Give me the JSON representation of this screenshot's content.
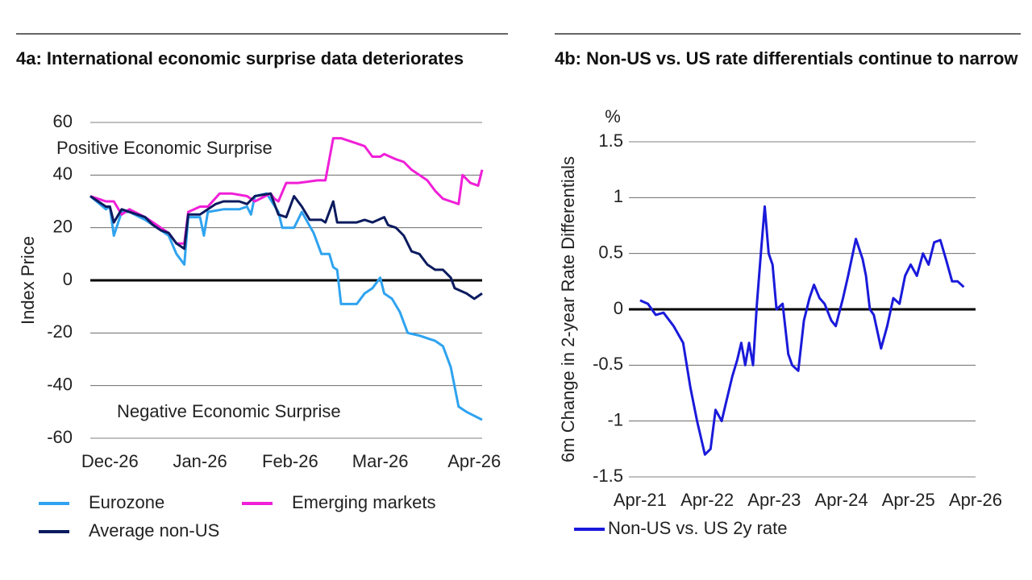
{
  "chart_data": [
    {
      "type": "line",
      "title": "4a: International economic surprise data deteriorates",
      "ylabel": "Index Price",
      "annotations": [
        "Positive Economic Surprise",
        "Negative Economic Surprise"
      ],
      "xlim": [
        0,
        100
      ],
      "ylim": [
        -60,
        60
      ],
      "grid": true,
      "legend": "bottom",
      "xticks": [
        {
          "value": 5,
          "label": "Dec-26"
        },
        {
          "value": 28,
          "label": "Jan-26"
        },
        {
          "value": 51,
          "label": "Feb-26"
        },
        {
          "value": 74,
          "label": "Mar-26"
        },
        {
          "value": 98,
          "label": "Apr-26"
        }
      ],
      "yticks": [
        60,
        40,
        20,
        0,
        -20,
        -40,
        -60
      ],
      "series": [
        {
          "name": "Eurozone",
          "color": "#2fa3f0",
          "x": [
            0,
            4,
            5,
            6,
            8,
            10,
            14,
            16,
            18,
            20,
            22,
            24,
            25,
            28,
            29,
            30,
            34,
            38,
            40,
            41,
            42,
            45,
            48,
            49,
            52,
            54,
            57,
            59,
            61,
            62,
            63,
            64,
            68,
            70,
            72,
            74,
            75,
            77,
            79,
            81,
            84,
            86,
            88,
            90,
            92,
            94,
            96,
            100
          ],
          "values": [
            32,
            27,
            28,
            17,
            26,
            26,
            23,
            21,
            19,
            17,
            10,
            6,
            24,
            24,
            17,
            26,
            27,
            27,
            28,
            25,
            32,
            33,
            26,
            20,
            20,
            26,
            18,
            10,
            10,
            5,
            4,
            -9,
            -9,
            -5,
            -3,
            1,
            -5,
            -7,
            -12,
            -20,
            -21,
            -22,
            -23,
            -25,
            -33,
            -48,
            -50,
            -53
          ]
        },
        {
          "name": "Emerging markets",
          "color": "#f01fd8",
          "x": [
            0,
            4,
            6,
            8,
            10,
            14,
            16,
            18,
            20,
            22,
            24,
            25,
            28,
            30,
            33,
            36,
            40,
            42,
            46,
            47,
            48,
            50,
            53,
            58,
            60,
            62,
            64,
            68,
            70,
            72,
            74,
            75,
            78,
            80,
            82,
            84,
            86,
            88,
            90,
            92,
            94,
            95,
            97,
            99,
            100
          ],
          "values": [
            32,
            30,
            30,
            25,
            27,
            24,
            22,
            20,
            18,
            14,
            14,
            26,
            28,
            28,
            33,
            33,
            32,
            30,
            33,
            31,
            30,
            37,
            37,
            38,
            38,
            54,
            54,
            52,
            51,
            47,
            47,
            48,
            46,
            45,
            42,
            40,
            38,
            34,
            31,
            30,
            29,
            40,
            37,
            36,
            42
          ]
        },
        {
          "name": "Average non-US",
          "color": "#0c1b5e",
          "x": [
            0,
            4,
            5,
            6,
            8,
            12,
            14,
            16,
            18,
            20,
            22,
            24,
            25,
            28,
            30,
            32,
            34,
            38,
            40,
            42,
            46,
            48,
            50,
            52,
            54,
            56,
            59,
            60,
            62,
            63,
            68,
            70,
            72,
            75,
            76,
            78,
            80,
            82,
            84,
            86,
            88,
            90,
            92,
            93,
            96,
            98,
            100
          ],
          "values": [
            32,
            28,
            28,
            22,
            27,
            25,
            24,
            21,
            19,
            18,
            14,
            12,
            25,
            25,
            27,
            29,
            30,
            30,
            29,
            32,
            33,
            25,
            24,
            32,
            28,
            23,
            23,
            22,
            30,
            22,
            22,
            23,
            22,
            24,
            21,
            20,
            17,
            11,
            10,
            6,
            4,
            4,
            1,
            -3,
            -5,
            -7,
            -5
          ]
        }
      ]
    },
    {
      "type": "line",
      "title": "4b: Non-US vs. US rate differentials continue to narrow",
      "ylabel": "6m Change in 2-year Rate Differentials",
      "y_unit": "%",
      "xlim": [
        -2,
        60
      ],
      "ylim": [
        -1.5,
        1.5
      ],
      "grid": true,
      "legend": "bottom",
      "xticks": [
        {
          "value": 0,
          "label": "Apr-21"
        },
        {
          "value": 12,
          "label": "Apr-22"
        },
        {
          "value": 24,
          "label": "Apr-23"
        },
        {
          "value": 36,
          "label": "Apr-24"
        },
        {
          "value": 48,
          "label": "Apr-25"
        },
        {
          "value": 60,
          "label": "Apr-26"
        }
      ],
      "yticks": [
        1.5,
        1,
        0.5,
        0,
        -0.5,
        -1,
        -1.5
      ],
      "series": [
        {
          "name": "Non-US vs. US 2y rate",
          "color": "#1a1adb",
          "x": [
            0,
            1.4,
            2.8,
            4.2,
            6,
            7.7,
            9,
            10.2,
            11.6,
            12.6,
            13.5,
            14.6,
            15.3,
            16.5,
            17.4,
            18.1,
            18.8,
            19.5,
            20.2,
            20.9,
            21.6,
            22.3,
            23,
            23.7,
            24.4,
            25.5,
            26.5,
            27.2,
            28.3,
            29.3,
            30.3,
            31.1,
            32.1,
            33,
            34.2,
            35,
            36.3,
            37.2,
            38.6,
            39.8,
            40.4,
            41.1,
            41.8,
            43.1,
            44.2,
            45.3,
            46.4,
            47.4,
            48.4,
            49.5,
            50.6,
            51.6,
            52.6,
            53.7,
            54.7,
            55.8,
            56.8,
            57.9
          ],
          "values": [
            0.08,
            0.05,
            -0.05,
            -0.03,
            -0.15,
            -0.3,
            -0.7,
            -1.0,
            -1.3,
            -1.25,
            -0.9,
            -1.0,
            -0.85,
            -0.6,
            -0.45,
            -0.3,
            -0.5,
            -0.3,
            -0.5,
            0.05,
            0.5,
            0.92,
            0.5,
            0.4,
            0.0,
            0.05,
            -0.4,
            -0.5,
            -0.55,
            -0.1,
            0.1,
            0.22,
            0.1,
            0.05,
            -0.1,
            -0.15,
            0.1,
            0.3,
            0.63,
            0.45,
            0.3,
            0.0,
            -0.05,
            -0.35,
            -0.15,
            0.1,
            0.05,
            0.3,
            0.4,
            0.3,
            0.5,
            0.4,
            0.6,
            0.62,
            0.45,
            0.25,
            0.25,
            0.2
          ]
        }
      ]
    }
  ]
}
